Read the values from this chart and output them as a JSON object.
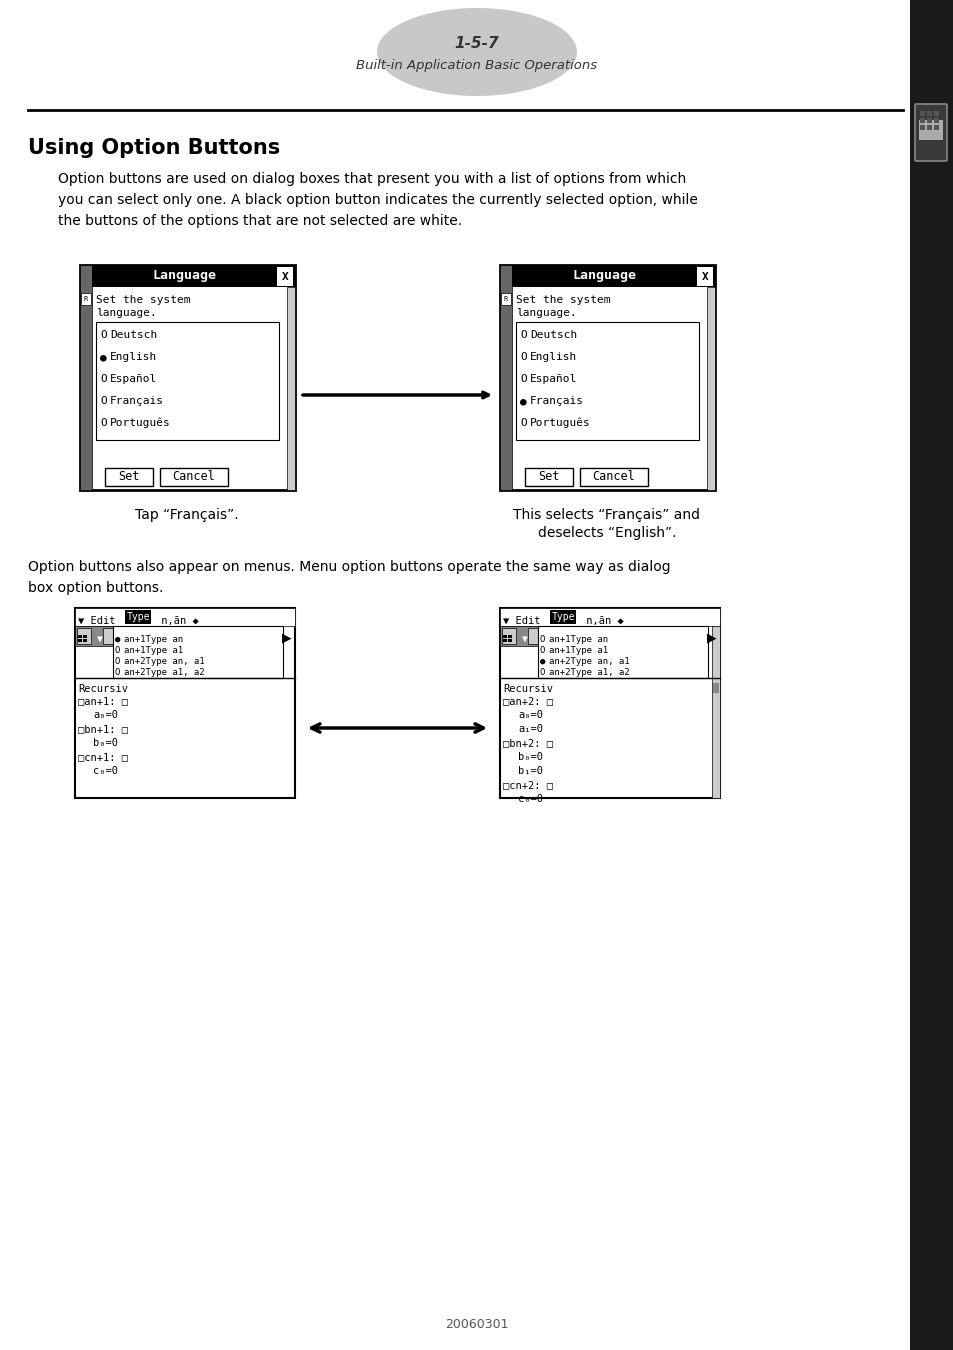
{
  "page_number": "1-5-7",
  "page_subtitle": "Built-in Application Basic Operations",
  "section_title": "Using Option Buttons",
  "body_text1_lines": [
    "Option buttons are used on dialog boxes that present you with a list of options from which",
    "you can select only one. A black option button indicates the currently selected option, while",
    "the buttons of the options that are not selected are white."
  ],
  "caption_left": "Tap “Français”.",
  "caption_right_line1": "This selects “Français” and",
  "caption_right_line2": "deselects “English”.",
  "body_text2_lines": [
    "Option buttons also appear on menus. Menu option buttons operate the same way as dialog",
    "box option buttons."
  ],
  "footer": "20060301",
  "bg_color": "#ffffff",
  "text_color": "#000000",
  "header_ellipse_color": "#c8c8c8",
  "sidebar_bg": "#1a1a1a",
  "dialog_header_bg": "#000000",
  "dialog_header_text": "#ffffff"
}
